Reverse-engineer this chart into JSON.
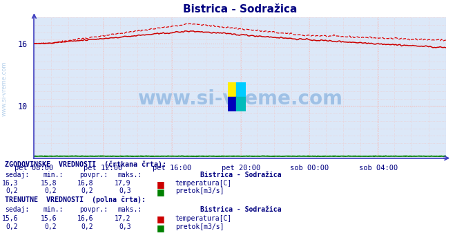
{
  "title": "Bistrica - Sodražica",
  "title_color": "#000080",
  "background_color": "#ffffff",
  "plot_bg_color": "#dce8f8",
  "grid_color_minor": "#f0c8c8",
  "grid_color_major": "#f0c0c0",
  "axis_color": "#4040c0",
  "xlabel_color": "#000080",
  "ylabel_color": "#000080",
  "x_tick_labels": [
    "pet 08:00",
    "pet 12:00",
    "pet 16:00",
    "pet 20:00",
    "sob 00:00",
    "sob 04:00"
  ],
  "x_tick_positions": [
    0,
    48,
    96,
    144,
    192,
    240
  ],
  "y_ticks": [
    10,
    16
  ],
  "ylim": [
    5.0,
    18.5
  ],
  "xlim": [
    0,
    287
  ],
  "temp_hist_color": "#dd0000",
  "temp_curr_color": "#cc0000",
  "flow_color": "#008000",
  "watermark_text": "www.si-vreme.com",
  "watermark_color": "#4488cc",
  "watermark_alpha": 0.4,
  "sidebar_text": "www.si-vreme.com",
  "sidebar_color": "#4488cc",
  "sidebar_alpha": 0.4,
  "n_points": 288,
  "table_header_color": "#000080",
  "table_value_color": "#000080"
}
